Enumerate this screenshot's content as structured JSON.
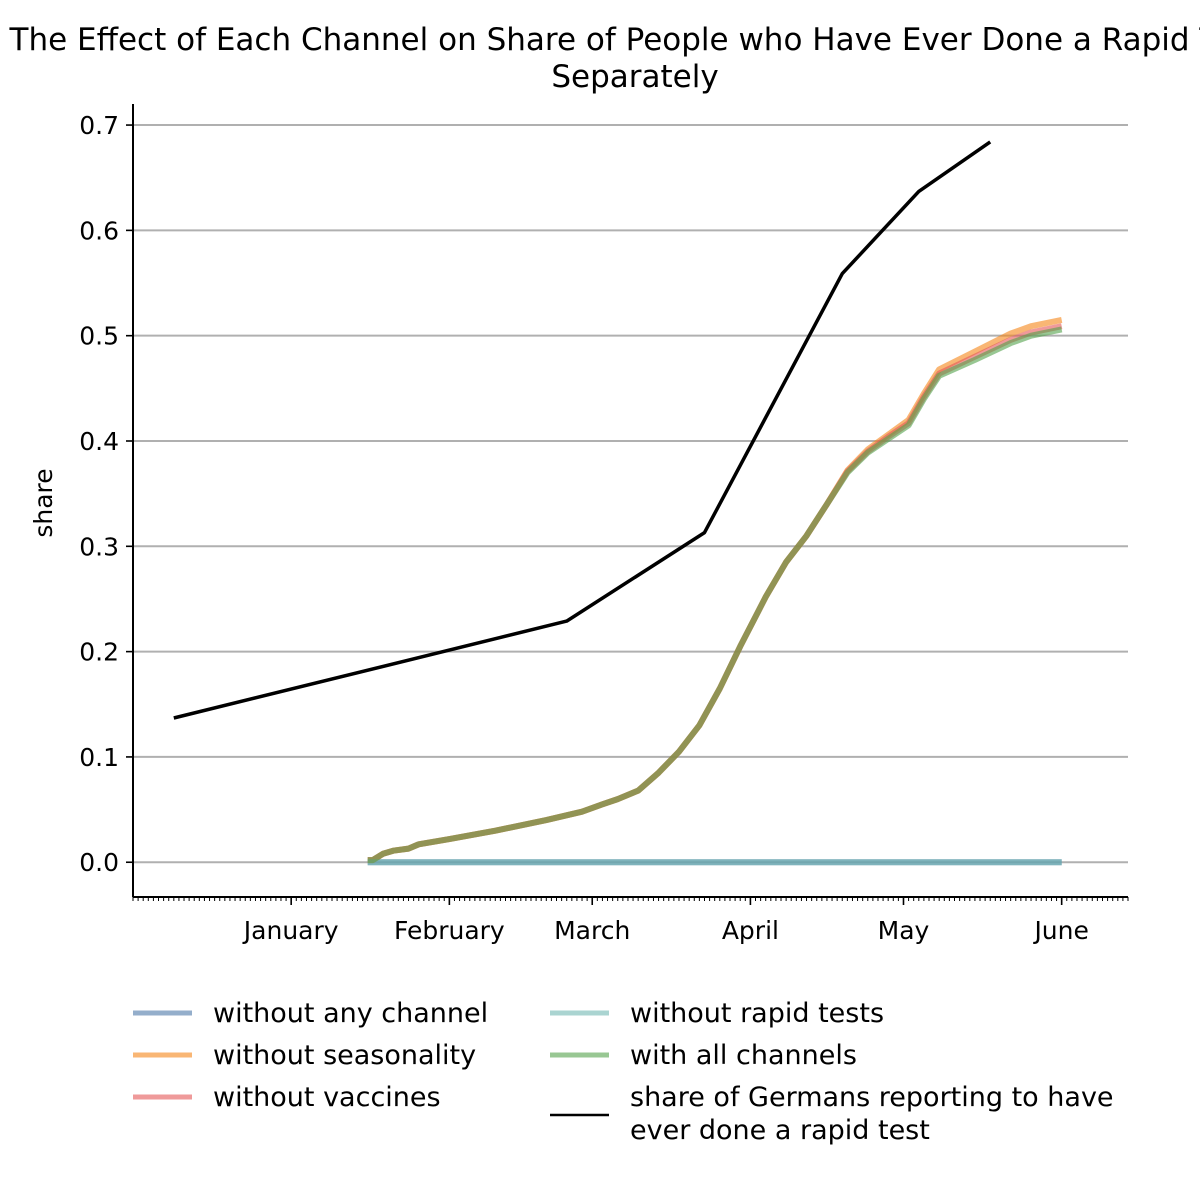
{
  "chart_data": {
    "type": "line",
    "title": "Effect of Each Channel on Share of People who Have Ever Done a Rapid Test if Only One Channel Is Active Separately",
    "title_lines": [
      "The Effect of Each Channel on Share of People who Have Ever Done a Rapid Test",
      "Separately"
    ],
    "xlabel": "",
    "ylabel": "share",
    "ylim": [
      -0.033,
      0.72
    ],
    "yticks": [
      0.0,
      0.1,
      0.2,
      0.3,
      0.4,
      0.5,
      0.6,
      0.7
    ],
    "ytick_labels": [
      "0.0",
      "0.1",
      "0.2",
      "0.3",
      "0.4",
      "0.5",
      "0.6",
      "0.7"
    ],
    "xlim": [
      "2020-12-01",
      "2021-06-14"
    ],
    "xticks": [
      "2021-01-01",
      "2021-02-01",
      "2021-03-01",
      "2021-04-01",
      "2021-05-01",
      "2021-06-01"
    ],
    "xtick_labels": [
      "January",
      "February",
      "March",
      "April",
      "May",
      "June"
    ],
    "grid": "horizontal",
    "legend_position": "below",
    "series": [
      {
        "name": "without any channel",
        "color": "#4c78a8",
        "style": "flat",
        "x": [
          "2021-01-16",
          "2021-06-01"
        ],
        "y": [
          0.0,
          0.0
        ]
      },
      {
        "name": "without seasonality",
        "color": "#f58518",
        "style": "model",
        "x": [
          "2021-01-16",
          "2021-01-17",
          "2021-01-19",
          "2021-01-21",
          "2021-01-24",
          "2021-01-26",
          "2021-02-01",
          "2021-02-10",
          "2021-02-20",
          "2021-02-27",
          "2021-03-03",
          "2021-03-06",
          "2021-03-10",
          "2021-03-14",
          "2021-03-18",
          "2021-03-22",
          "2021-03-26",
          "2021-03-30",
          "2021-04-04",
          "2021-04-08",
          "2021-04-12",
          "2021-04-16",
          "2021-04-20",
          "2021-04-24",
          "2021-04-28",
          "2021-05-02",
          "2021-05-05",
          "2021-05-08",
          "2021-05-15",
          "2021-05-22",
          "2021-05-26",
          "2021-06-01"
        ],
        "y": [
          0.002,
          0.002,
          0.008,
          0.011,
          0.013,
          0.017,
          0.022,
          0.03,
          0.04,
          0.048,
          0.055,
          0.06,
          0.068,
          0.085,
          0.105,
          0.13,
          0.165,
          0.205,
          0.252,
          0.285,
          0.31,
          0.34,
          0.372,
          0.392,
          0.406,
          0.42,
          0.445,
          0.468,
          0.485,
          0.502,
          0.509,
          0.515
        ]
      },
      {
        "name": "without vaccines",
        "color": "#e45756",
        "style": "model",
        "x": [
          "2021-01-16",
          "2021-01-17",
          "2021-01-19",
          "2021-01-21",
          "2021-01-24",
          "2021-01-26",
          "2021-02-01",
          "2021-02-10",
          "2021-02-20",
          "2021-02-27",
          "2021-03-03",
          "2021-03-06",
          "2021-03-10",
          "2021-03-14",
          "2021-03-18",
          "2021-03-22",
          "2021-03-26",
          "2021-03-30",
          "2021-04-04",
          "2021-04-08",
          "2021-04-12",
          "2021-04-16",
          "2021-04-20",
          "2021-04-24",
          "2021-04-28",
          "2021-05-02",
          "2021-05-05",
          "2021-05-08",
          "2021-05-15",
          "2021-05-22",
          "2021-05-26",
          "2021-06-01"
        ],
        "y": [
          0.002,
          0.002,
          0.008,
          0.011,
          0.013,
          0.017,
          0.022,
          0.03,
          0.04,
          0.048,
          0.055,
          0.06,
          0.068,
          0.085,
          0.105,
          0.13,
          0.165,
          0.205,
          0.252,
          0.285,
          0.31,
          0.34,
          0.371,
          0.39,
          0.404,
          0.417,
          0.442,
          0.464,
          0.48,
          0.496,
          0.503,
          0.509
        ]
      },
      {
        "name": "without rapid tests",
        "color": "#72b7b2",
        "style": "flat",
        "x": [
          "2021-01-16",
          "2021-06-01"
        ],
        "y": [
          0.0,
          0.0
        ]
      },
      {
        "name": "with all channels",
        "color": "#54a24b",
        "style": "model",
        "x": [
          "2021-01-16",
          "2021-01-17",
          "2021-01-19",
          "2021-01-21",
          "2021-01-24",
          "2021-01-26",
          "2021-02-01",
          "2021-02-10",
          "2021-02-20",
          "2021-02-27",
          "2021-03-03",
          "2021-03-06",
          "2021-03-10",
          "2021-03-14",
          "2021-03-18",
          "2021-03-22",
          "2021-03-26",
          "2021-03-30",
          "2021-04-04",
          "2021-04-08",
          "2021-04-12",
          "2021-04-16",
          "2021-04-20",
          "2021-04-24",
          "2021-04-28",
          "2021-05-02",
          "2021-05-05",
          "2021-05-08",
          "2021-05-15",
          "2021-05-22",
          "2021-05-26",
          "2021-06-01"
        ],
        "y": [
          0.002,
          0.002,
          0.008,
          0.011,
          0.013,
          0.017,
          0.022,
          0.03,
          0.04,
          0.048,
          0.055,
          0.06,
          0.068,
          0.085,
          0.105,
          0.13,
          0.165,
          0.205,
          0.252,
          0.285,
          0.31,
          0.34,
          0.37,
          0.389,
          0.402,
          0.415,
          0.44,
          0.462,
          0.477,
          0.493,
          0.5,
          0.506
        ]
      },
      {
        "name": "share of Germans reporting to have ever done a rapid test",
        "legend_lines": [
          "share of Germans reporting to have",
          "ever done a rapid test"
        ],
        "color": "#000000",
        "style": "data",
        "x": [
          "2020-12-09",
          "2021-02-24",
          "2021-03-23",
          "2021-04-19",
          "2021-05-04",
          "2021-05-18"
        ],
        "y": [
          0.137,
          0.229,
          0.313,
          0.559,
          0.637,
          0.684
        ]
      }
    ]
  }
}
